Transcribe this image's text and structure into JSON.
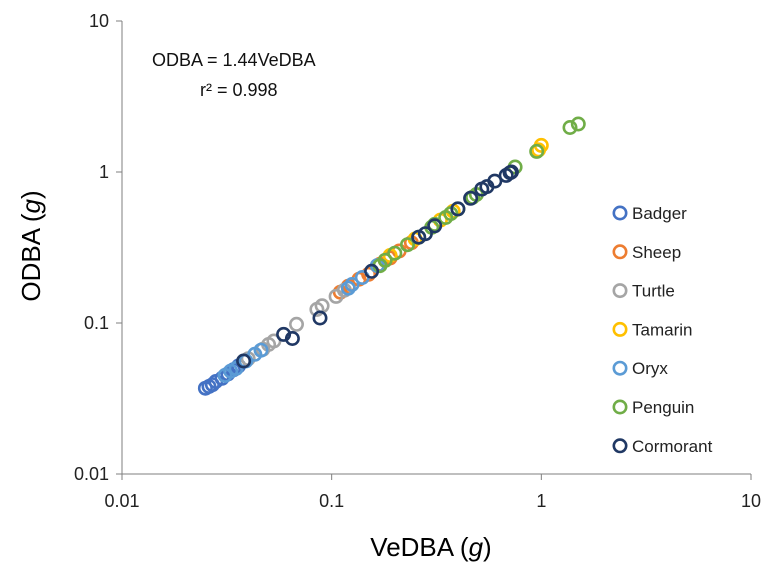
{
  "chart_data": {
    "type": "scatter",
    "title": "",
    "xlabel": "VeDBA (g)",
    "ylabel": "ODBA (g)",
    "xlabel_main": "VeDBA (",
    "xlabel_unit": "g",
    "xlabel_close": ")",
    "ylabel_main": "ODBA (",
    "ylabel_unit": "g",
    "ylabel_close": ")",
    "xscale": "log",
    "yscale": "log",
    "xlim": [
      0.01,
      10
    ],
    "ylim": [
      0.01,
      10
    ],
    "x_ticks": [
      0.01,
      0.1,
      1,
      10
    ],
    "x_tick_labels": [
      "0.01",
      "0.1",
      "1",
      "10"
    ],
    "y_ticks": [
      0.01,
      0.1,
      1,
      10
    ],
    "y_tick_labels": [
      "0.01",
      "0.1",
      "1",
      "10"
    ],
    "grid": false,
    "legend_position": "right",
    "marker": "open-circle",
    "annotations": [
      "ODBA = 1.44VeDBA",
      "r² = 0.998"
    ],
    "series": [
      {
        "name": "Badger",
        "color": "#4472C4",
        "points": [
          [
            0.025,
            0.037
          ],
          [
            0.026,
            0.038
          ],
          [
            0.027,
            0.039
          ],
          [
            0.028,
            0.041
          ],
          [
            0.03,
            0.043
          ],
          [
            0.032,
            0.046
          ],
          [
            0.034,
            0.049
          ],
          [
            0.036,
            0.052
          ]
        ]
      },
      {
        "name": "Sheep",
        "color": "#ED7D31",
        "points": [
          [
            0.11,
            0.16
          ],
          [
            0.12,
            0.175
          ],
          [
            0.135,
            0.195
          ],
          [
            0.15,
            0.21
          ],
          [
            0.17,
            0.245
          ],
          [
            0.18,
            0.26
          ],
          [
            0.19,
            0.27
          ],
          [
            0.21,
            0.3
          ],
          [
            0.24,
            0.34
          ]
        ]
      },
      {
        "name": "Turtle",
        "color": "#A5A5A5",
        "points": [
          [
            0.04,
            0.058
          ],
          [
            0.047,
            0.067
          ],
          [
            0.05,
            0.072
          ],
          [
            0.053,
            0.076
          ],
          [
            0.068,
            0.098
          ],
          [
            0.085,
            0.123
          ],
          [
            0.09,
            0.13
          ],
          [
            0.105,
            0.15
          ],
          [
            0.115,
            0.165
          ]
        ]
      },
      {
        "name": "Tamarin",
        "color": "#FFC000",
        "points": [
          [
            0.19,
            0.28
          ],
          [
            0.25,
            0.36
          ],
          [
            0.33,
            0.48
          ],
          [
            0.38,
            0.55
          ],
          [
            0.97,
            1.4
          ],
          [
            1.0,
            1.5
          ]
        ]
      },
      {
        "name": "Oryx",
        "color": "#5B9BD5",
        "points": [
          [
            0.031,
            0.045
          ],
          [
            0.033,
            0.048
          ],
          [
            0.035,
            0.05
          ],
          [
            0.039,
            0.056
          ],
          [
            0.043,
            0.062
          ],
          [
            0.046,
            0.066
          ],
          [
            0.12,
            0.17
          ],
          [
            0.125,
            0.18
          ],
          [
            0.14,
            0.2
          ],
          [
            0.165,
            0.24
          ]
        ]
      },
      {
        "name": "Penguin",
        "color": "#70AD47",
        "points": [
          [
            0.17,
            0.24
          ],
          [
            0.18,
            0.26
          ],
          [
            0.2,
            0.29
          ],
          [
            0.23,
            0.33
          ],
          [
            0.26,
            0.37
          ],
          [
            0.3,
            0.43
          ],
          [
            0.31,
            0.45
          ],
          [
            0.35,
            0.5
          ],
          [
            0.37,
            0.53
          ],
          [
            0.4,
            0.57
          ],
          [
            0.47,
            0.68
          ],
          [
            0.49,
            0.71
          ],
          [
            0.75,
            1.08
          ],
          [
            0.95,
            1.37
          ],
          [
            1.37,
            1.97
          ],
          [
            1.5,
            2.08
          ]
        ]
      },
      {
        "name": "Cormorant",
        "color": "#203864",
        "points": [
          [
            0.038,
            0.056
          ],
          [
            0.059,
            0.084
          ],
          [
            0.065,
            0.079
          ],
          [
            0.088,
            0.108
          ],
          [
            0.155,
            0.22
          ],
          [
            0.26,
            0.37
          ],
          [
            0.28,
            0.39
          ],
          [
            0.31,
            0.44
          ],
          [
            0.4,
            0.57
          ],
          [
            0.46,
            0.67
          ],
          [
            0.52,
            0.77
          ],
          [
            0.55,
            0.8
          ],
          [
            0.6,
            0.87
          ],
          [
            0.68,
            0.95
          ],
          [
            0.71,
            0.99
          ],
          [
            0.72,
            1.0
          ]
        ]
      }
    ]
  }
}
